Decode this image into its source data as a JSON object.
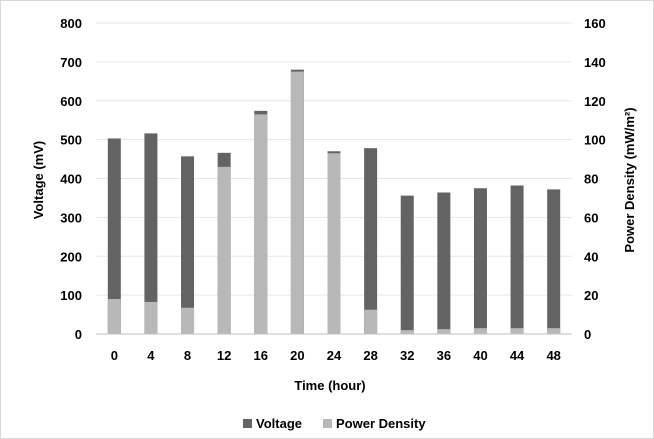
{
  "chart_data": {
    "type": "bar",
    "stacking": "overlay (power density bar drawn over voltage bar)",
    "categories": [
      "0",
      "4",
      "8",
      "12",
      "16",
      "20",
      "24",
      "28",
      "32",
      "36",
      "40",
      "44",
      "48"
    ],
    "xlabel": "Time (hour)",
    "ylabel": "Voltage (mV)",
    "y2label": "Power Density (mW/m²)",
    "ylim": [
      0,
      800
    ],
    "y2lim": [
      0,
      160
    ],
    "yticks": [
      "0",
      "100",
      "200",
      "300",
      "400",
      "500",
      "600",
      "700",
      "800"
    ],
    "y2ticks": [
      "0",
      "20",
      "40",
      "60",
      "80",
      "100",
      "120",
      "140",
      "160"
    ],
    "grid": true,
    "legend_position": "bottom",
    "series": [
      {
        "name": "Voltage",
        "axis": "left",
        "color": "#636363",
        "values": [
          503,
          516,
          457,
          466,
          574,
          680,
          470,
          478,
          356,
          364,
          375,
          382,
          372
        ]
      },
      {
        "name": "Power Density",
        "axis": "right",
        "color": "#b8b8b8",
        "values": [
          18,
          16.5,
          13.5,
          86,
          113,
          135,
          93,
          12.5,
          2,
          2.5,
          3,
          3,
          3
        ]
      }
    ]
  }
}
